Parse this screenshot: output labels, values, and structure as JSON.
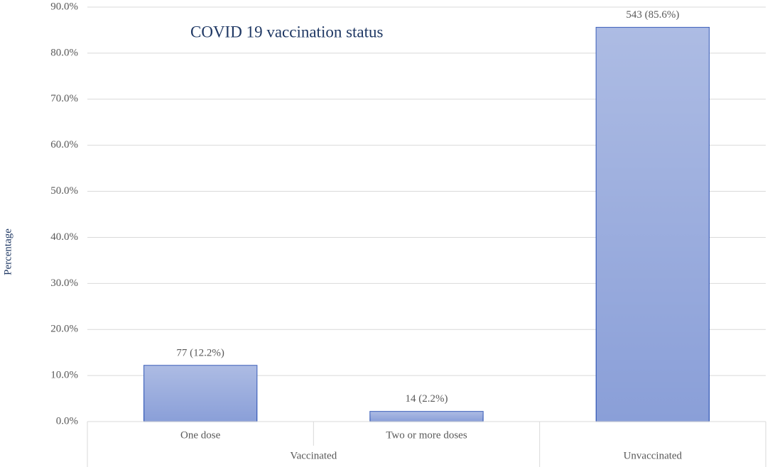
{
  "chart_data": {
    "type": "bar",
    "title": "COVID 19 vaccination status",
    "y_label": "Percentage",
    "groups": [
      {
        "name": "Vaccinated",
        "categories": [
          "One dose",
          "Two or more doses"
        ]
      },
      {
        "name": "Unvaccinated",
        "categories": [
          null
        ]
      }
    ],
    "values": [
      12.2,
      2.2,
      85.6
    ],
    "value_labels": [
      "77 (12.2%)",
      "14 (2.2%)",
      "543 (85.6%)"
    ],
    "color": "#8a9fd8",
    "ylim": [
      0,
      90
    ],
    "yticks": [
      {
        "value": 0,
        "label": "0.0%"
      },
      {
        "value": 10,
        "label": "10.0%"
      },
      {
        "value": 20,
        "label": "20.0%"
      },
      {
        "value": 30,
        "label": "30.0%"
      },
      {
        "value": 40,
        "label": "40.0%"
      },
      {
        "value": 50,
        "label": "50.0%"
      },
      {
        "value": 60,
        "label": "60.0%"
      },
      {
        "value": 70,
        "label": "70.0%"
      },
      {
        "value": 80,
        "label": "80.0%"
      },
      {
        "value": 90,
        "label": "90.0%"
      }
    ],
    "grid": true
  }
}
